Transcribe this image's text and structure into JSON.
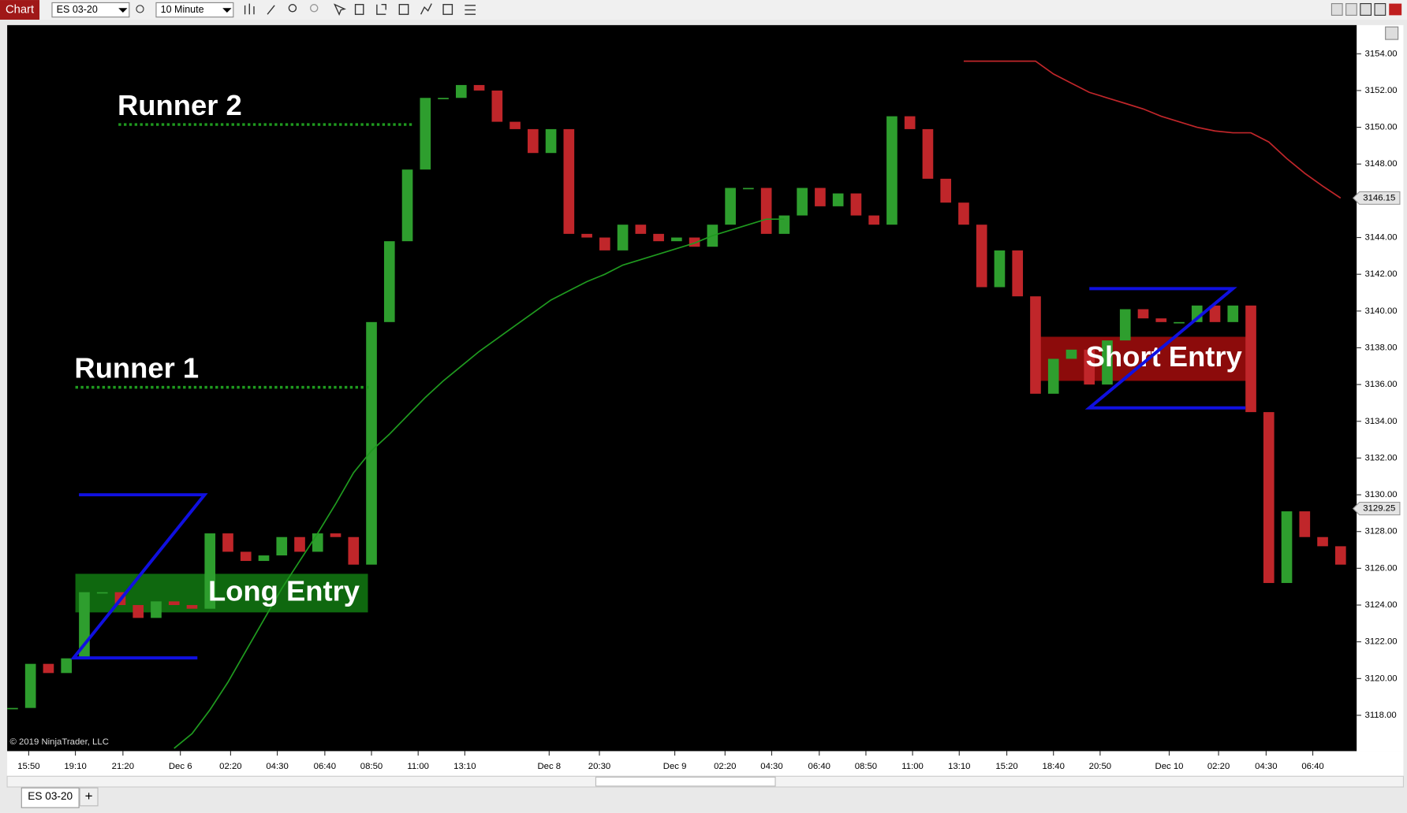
{
  "window": {
    "title": "Chart",
    "instrument": "ES 03-20",
    "interval": "10 Minute"
  },
  "chart_data": {
    "type": "candlestick",
    "closes": [
      3118.4,
      3120.8,
      3120.3,
      3121.1,
      3124.7,
      3124.7,
      3124.0,
      3123.3,
      3124.2,
      3124.0,
      3123.8,
      3127.9,
      3126.9,
      3126.4,
      3126.7,
      3127.7,
      3126.9,
      3127.9,
      3127.7,
      3126.2,
      3139.4,
      3143.8,
      3147.7,
      3151.6,
      3151.6,
      3152.3,
      3152.0,
      3150.3,
      3149.9,
      3148.6,
      3149.9,
      3144.2,
      3144.0,
      3143.3,
      3144.7,
      3144.2,
      3143.8,
      3144.0,
      3143.5,
      3144.7,
      3146.7,
      3146.7,
      3144.2,
      3145.2,
      3146.7,
      3145.7,
      3146.4,
      3145.2,
      3144.7,
      3150.6,
      3149.9,
      3147.2,
      3145.9,
      3144.7,
      3141.3,
      3143.3,
      3140.8,
      3135.5,
      3137.4,
      3137.9,
      3136.0,
      3138.4,
      3140.1,
      3139.6,
      3139.4,
      3139.4,
      3140.3,
      3139.4,
      3140.3,
      3134.5,
      3125.2,
      3129.1,
      3127.7,
      3127.2,
      3126.2
    ],
    "ylim": [
      3116.05,
      3155.56
    ],
    "yticks": [
      {
        "value": 3118,
        "label": "3118.00"
      },
      {
        "value": 3120,
        "label": "3120.00"
      },
      {
        "value": 3122,
        "label": "3122.00"
      },
      {
        "value": 3124,
        "label": "3124.00"
      },
      {
        "value": 3126,
        "label": "3126.00"
      },
      {
        "value": 3128,
        "label": "3128.00"
      },
      {
        "value": 3130,
        "label": "3130.00"
      },
      {
        "value": 3132,
        "label": "3132.00"
      },
      {
        "value": 3134,
        "label": "3134.00"
      },
      {
        "value": 3136,
        "label": "3136.00"
      },
      {
        "value": 3138,
        "label": "3138.00"
      },
      {
        "value": 3140,
        "label": "3140.00"
      },
      {
        "value": 3142,
        "label": "3142.00"
      },
      {
        "value": 3144,
        "label": "3144.00"
      },
      {
        "value": 3146,
        "label": "3146.00"
      },
      {
        "value": 3148,
        "label": "3148.00"
      },
      {
        "value": 3150,
        "label": "3150.00"
      },
      {
        "value": 3152,
        "label": "3152.00"
      },
      {
        "value": 3154,
        "label": "3154.00"
      }
    ],
    "xtick_labels": [
      "15:50",
      "19:10",
      "21:20",
      "Dec 6",
      "02:20",
      "04:30",
      "06:40",
      "08:50",
      "11:00",
      "13:10",
      "Dec 8",
      "20:30",
      "Dec 9",
      "02:20",
      "04:30",
      "06:40",
      "08:50",
      "11:00",
      "13:10",
      "15:20",
      "18:40",
      "20:50",
      "Dec 10",
      "02:20",
      "04:30",
      "06:40"
    ],
    "stop_lines": [
      {
        "color": "#c0262a",
        "values": [
          null,
          null,
          null,
          null,
          null,
          null,
          null,
          null,
          null,
          null,
          null,
          null,
          null,
          null,
          null,
          null,
          null,
          null,
          null,
          null,
          null,
          null,
          null,
          null,
          null,
          null,
          null,
          null,
          null,
          null,
          null,
          null,
          null,
          null,
          null,
          null,
          null,
          null,
          null,
          null,
          null,
          null,
          null,
          null,
          null,
          null,
          null,
          null,
          null,
          null,
          null,
          null,
          null,
          3153.6,
          3153.6,
          3153.6,
          3153.6,
          3153.6,
          3152.9,
          3152.4,
          3151.9,
          3151.6,
          3151.3,
          3151.0,
          3150.6,
          3150.3,
          3150.0,
          3149.8,
          3149.7,
          3149.7,
          3149.2,
          3148.3,
          3147.5,
          3146.8,
          3146.15
        ]
      },
      {
        "color": "#1f9a1f",
        "values": [
          null,
          null,
          null,
          null,
          null,
          null,
          null,
          null,
          null,
          3116.2,
          3117.0,
          3118.3,
          3119.8,
          3121.5,
          3123.2,
          3124.9,
          3126.4,
          3127.9,
          3129.5,
          3131.2,
          3132.4,
          3133.3,
          3134.3,
          3135.3,
          3136.2,
          3137.0,
          3137.8,
          3138.5,
          3139.2,
          3139.9,
          3140.6,
          3141.1,
          3141.6,
          3142.0,
          3142.5,
          3142.8,
          3143.1,
          3143.4,
          3143.7,
          3144.1,
          3144.4,
          3144.7,
          3145.0,
          3145.0,
          null,
          null,
          null,
          null,
          null,
          null,
          null,
          null,
          null,
          null,
          null,
          null,
          null,
          null,
          null,
          null,
          null,
          null,
          null,
          null,
          null,
          null,
          null,
          null,
          null,
          null,
          null,
          null,
          null,
          null,
          null
        ]
      }
    ],
    "up_color": "#2e9e2e",
    "down_color": "#c0262a",
    "price_markers": [
      {
        "value": 3146.15,
        "label": "3146.15"
      },
      {
        "value": 3129.25,
        "label": "3129.25"
      }
    ],
    "annotations": {
      "runner_2": {
        "text": "Runner 2",
        "level": 3150.15
      },
      "runner_1": {
        "text": "Runner 1",
        "level": 3135.85
      },
      "long_entry": {
        "text": "Long Entry",
        "band": [
          3123.6,
          3125.7
        ]
      },
      "short_entry": {
        "text": "Short Entry",
        "band": [
          3136.2,
          3138.6
        ]
      }
    },
    "watermark": "© 2019 NinjaTrader, LLC"
  },
  "tabs": [
    "ES 03-20",
    "+"
  ]
}
